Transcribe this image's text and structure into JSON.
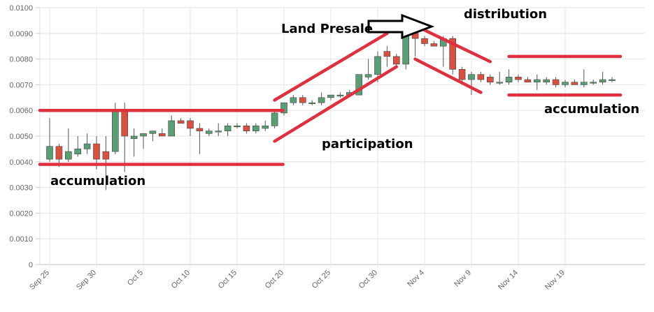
{
  "chart_data": {
    "type": "candlestick",
    "title": "",
    "xlabel": "",
    "ylabel": "",
    "ylim": [
      0,
      0.01
    ],
    "y_ticks": [
      "0",
      "0.0010",
      "0.0020",
      "0.0030",
      "0.0040",
      "0.0050",
      "0.0060",
      "0.0070",
      "0.0080",
      "0.0090",
      "0.0100"
    ],
    "x_ticks": [
      "Sep 25",
      "Sep 30",
      "Oct 5",
      "Oct 10",
      "Oct 15",
      "Oct 20",
      "Oct 25",
      "Oct 30",
      "Nov 4",
      "Nov 9",
      "Nov 14",
      "Nov 19"
    ],
    "grid": true,
    "colors": {
      "up": "#5a9e75",
      "down": "#d9503f",
      "annotation_line": "#e03040",
      "grid": "#e6e6e6"
    },
    "candles": [
      {
        "date": "Sep 25",
        "open": 0.0041,
        "high": 0.0057,
        "low": 0.004,
        "close": 0.0046
      },
      {
        "date": "Sep 26",
        "open": 0.0046,
        "high": 0.0047,
        "low": 0.0038,
        "close": 0.0041
      },
      {
        "date": "Sep 27",
        "open": 0.0041,
        "high": 0.0053,
        "low": 0.004,
        "close": 0.0044
      },
      {
        "date": "Sep 28",
        "open": 0.0043,
        "high": 0.005,
        "low": 0.0042,
        "close": 0.0045
      },
      {
        "date": "Sep 29",
        "open": 0.0045,
        "high": 0.0051,
        "low": 0.0043,
        "close": 0.0047
      },
      {
        "date": "Sep 30",
        "open": 0.0047,
        "high": 0.005,
        "low": 0.0037,
        "close": 0.0041
      },
      {
        "date": "Oct 1",
        "open": 0.0044,
        "high": 0.005,
        "low": 0.0029,
        "close": 0.0041
      },
      {
        "date": "Oct 2",
        "open": 0.0044,
        "high": 0.0063,
        "low": 0.0043,
        "close": 0.006
      },
      {
        "date": "Oct 3",
        "open": 0.006,
        "high": 0.0063,
        "low": 0.0036,
        "close": 0.005
      },
      {
        "date": "Oct 4",
        "open": 0.0049,
        "high": 0.0053,
        "low": 0.0042,
        "close": 0.005
      },
      {
        "date": "Oct 5",
        "open": 0.005,
        "high": 0.0051,
        "low": 0.0045,
        "close": 0.0051
      },
      {
        "date": "Oct 6",
        "open": 0.0051,
        "high": 0.0052,
        "low": 0.0048,
        "close": 0.0052
      },
      {
        "date": "Oct 7",
        "open": 0.0051,
        "high": 0.0053,
        "low": 0.005,
        "close": 0.005
      },
      {
        "date": "Oct 8",
        "open": 0.005,
        "high": 0.0058,
        "low": 0.005,
        "close": 0.0056
      },
      {
        "date": "Oct 9",
        "open": 0.0056,
        "high": 0.0057,
        "low": 0.0055,
        "close": 0.0055
      },
      {
        "date": "Oct 10",
        "open": 0.0056,
        "high": 0.0057,
        "low": 0.005,
        "close": 0.0053
      },
      {
        "date": "Oct 11",
        "open": 0.0053,
        "high": 0.0055,
        "low": 0.0043,
        "close": 0.0052
      },
      {
        "date": "Oct 12",
        "open": 0.0051,
        "high": 0.0053,
        "low": 0.005,
        "close": 0.0052
      },
      {
        "date": "Oct 13",
        "open": 0.0052,
        "high": 0.0055,
        "low": 0.005,
        "close": 0.0052
      },
      {
        "date": "Oct 14",
        "open": 0.0052,
        "high": 0.0055,
        "low": 0.005,
        "close": 0.0054
      },
      {
        "date": "Oct 15",
        "open": 0.0054,
        "high": 0.0055,
        "low": 0.0053,
        "close": 0.0054
      },
      {
        "date": "Oct 16",
        "open": 0.0054,
        "high": 0.0055,
        "low": 0.0051,
        "close": 0.0052
      },
      {
        "date": "Oct 17",
        "open": 0.0052,
        "high": 0.0055,
        "low": 0.0051,
        "close": 0.0054
      },
      {
        "date": "Oct 18",
        "open": 0.0053,
        "high": 0.0056,
        "low": 0.0052,
        "close": 0.0054
      },
      {
        "date": "Oct 19",
        "open": 0.0054,
        "high": 0.006,
        "low": 0.0053,
        "close": 0.0059
      },
      {
        "date": "Oct 20",
        "open": 0.0059,
        "high": 0.0063,
        "low": 0.0058,
        "close": 0.0063
      },
      {
        "date": "Oct 21",
        "open": 0.0063,
        "high": 0.0066,
        "low": 0.0062,
        "close": 0.0065
      },
      {
        "date": "Oct 22",
        "open": 0.0065,
        "high": 0.0066,
        "low": 0.0062,
        "close": 0.0063
      },
      {
        "date": "Oct 23",
        "open": 0.0063,
        "high": 0.0064,
        "low": 0.0062,
        "close": 0.0063
      },
      {
        "date": "Oct 24",
        "open": 0.0063,
        "high": 0.0067,
        "low": 0.0062,
        "close": 0.0065
      },
      {
        "date": "Oct 25",
        "open": 0.0065,
        "high": 0.0066,
        "low": 0.0064,
        "close": 0.0066
      },
      {
        "date": "Oct 26",
        "open": 0.0066,
        "high": 0.0067,
        "low": 0.0065,
        "close": 0.0066
      },
      {
        "date": "Oct 27",
        "open": 0.0066,
        "high": 0.0068,
        "low": 0.0066,
        "close": 0.0067
      },
      {
        "date": "Oct 28",
        "open": 0.0066,
        "high": 0.0074,
        "low": 0.0066,
        "close": 0.0074
      },
      {
        "date": "Oct 29",
        "open": 0.0073,
        "high": 0.008,
        "low": 0.0072,
        "close": 0.0074
      },
      {
        "date": "Oct 30",
        "open": 0.0074,
        "high": 0.0083,
        "low": 0.0071,
        "close": 0.0081
      },
      {
        "date": "Oct 31",
        "open": 0.0083,
        "high": 0.0085,
        "low": 0.0077,
        "close": 0.0081
      },
      {
        "date": "Nov 1",
        "open": 0.0081,
        "high": 0.0082,
        "low": 0.0077,
        "close": 0.0078
      },
      {
        "date": "Nov 2",
        "open": 0.0078,
        "high": 0.0092,
        "low": 0.0076,
        "close": 0.009
      },
      {
        "date": "Nov 3",
        "open": 0.009,
        "high": 0.0091,
        "low": 0.0081,
        "close": 0.0088
      },
      {
        "date": "Nov 4",
        "open": 0.0088,
        "high": 0.0089,
        "low": 0.0085,
        "close": 0.0086
      },
      {
        "date": "Nov 5",
        "open": 0.0086,
        "high": 0.0087,
        "low": 0.0085,
        "close": 0.0085
      },
      {
        "date": "Nov 6",
        "open": 0.0085,
        "high": 0.0089,
        "low": 0.0077,
        "close": 0.0088
      },
      {
        "date": "Nov 7",
        "open": 0.0088,
        "high": 0.0089,
        "low": 0.0074,
        "close": 0.0076
      },
      {
        "date": "Nov 8",
        "open": 0.0076,
        "high": 0.0077,
        "low": 0.007,
        "close": 0.0072
      },
      {
        "date": "Nov 9",
        "open": 0.0072,
        "high": 0.0075,
        "low": 0.0066,
        "close": 0.0074
      },
      {
        "date": "Nov 10",
        "open": 0.0074,
        "high": 0.0075,
        "low": 0.0071,
        "close": 0.0072
      },
      {
        "date": "Nov 11",
        "open": 0.0073,
        "high": 0.0074,
        "low": 0.007,
        "close": 0.0071
      },
      {
        "date": "Nov 12",
        "open": 0.0071,
        "high": 0.0075,
        "low": 0.007,
        "close": 0.0071
      },
      {
        "date": "Nov 13",
        "open": 0.0071,
        "high": 0.0076,
        "low": 0.007,
        "close": 0.0073
      },
      {
        "date": "Nov 14",
        "open": 0.0073,
        "high": 0.0074,
        "low": 0.0071,
        "close": 0.0072
      },
      {
        "date": "Nov 15",
        "open": 0.0072,
        "high": 0.0073,
        "low": 0.0071,
        "close": 0.0071
      },
      {
        "date": "Nov 16",
        "open": 0.0071,
        "high": 0.0074,
        "low": 0.0068,
        "close": 0.0072
      },
      {
        "date": "Nov 17",
        "open": 0.0071,
        "high": 0.0073,
        "low": 0.007,
        "close": 0.0072
      },
      {
        "date": "Nov 18",
        "open": 0.0072,
        "high": 0.0073,
        "low": 0.0069,
        "close": 0.007
      },
      {
        "date": "Nov 19",
        "open": 0.007,
        "high": 0.0072,
        "low": 0.0069,
        "close": 0.0071
      },
      {
        "date": "Nov 20",
        "open": 0.0071,
        "high": 0.0072,
        "low": 0.007,
        "close": 0.007
      },
      {
        "date": "Nov 21",
        "open": 0.007,
        "high": 0.0076,
        "low": 0.0069,
        "close": 0.0071
      },
      {
        "date": "Nov 22",
        "open": 0.0071,
        "high": 0.0072,
        "low": 0.007,
        "close": 0.0071
      },
      {
        "date": "Nov 23",
        "open": 0.0071,
        "high": 0.0075,
        "low": 0.007,
        "close": 0.0072
      },
      {
        "date": "Nov 24",
        "open": 0.0072,
        "high": 0.0073,
        "low": 0.0071,
        "close": 0.0072
      }
    ],
    "annotations": [
      {
        "id": "accumulation-left",
        "text": "accumulation"
      },
      {
        "id": "participation",
        "text": "participation"
      },
      {
        "id": "land-presale",
        "text": "Land Presale"
      },
      {
        "id": "distribution",
        "text": "distribution"
      },
      {
        "id": "accumulation-right",
        "text": "accumulation"
      }
    ],
    "guide_lines": [
      {
        "id": "range-top-left",
        "from": {
          "date": "Sep 25",
          "value": 0.006
        },
        "to": {
          "date": "Oct 19",
          "value": 0.006
        }
      },
      {
        "id": "range-bottom-left",
        "from": {
          "date": "Sep 25",
          "value": 0.0039
        },
        "to": {
          "date": "Oct 19",
          "value": 0.0039
        }
      },
      {
        "id": "channel-upper-rise",
        "from": {
          "date": "Oct 19",
          "value": 0.0064
        },
        "to": {
          "date": "Oct 31",
          "value": 0.009
        }
      },
      {
        "id": "channel-lower-rise",
        "from": {
          "date": "Oct 19",
          "value": 0.0048
        },
        "to": {
          "date": "Nov 1",
          "value": 0.0077
        }
      },
      {
        "id": "channel-upper-fall",
        "from": {
          "date": "Nov 3",
          "value": 0.0093
        },
        "to": {
          "date": "Nov 11",
          "value": 0.0079
        }
      },
      {
        "id": "channel-lower-fall",
        "from": {
          "date": "Nov 3",
          "value": 0.008
        },
        "to": {
          "date": "Nov 10",
          "value": 0.0067
        }
      },
      {
        "id": "range-top-right",
        "from": {
          "date": "Nov 13",
          "value": 0.0081
        },
        "to": {
          "date": "Nov 24",
          "value": 0.0081
        }
      },
      {
        "id": "range-bottom-right",
        "from": {
          "date": "Nov 13",
          "value": 0.0066
        },
        "to": {
          "date": "Nov 24",
          "value": 0.0066
        }
      }
    ]
  }
}
